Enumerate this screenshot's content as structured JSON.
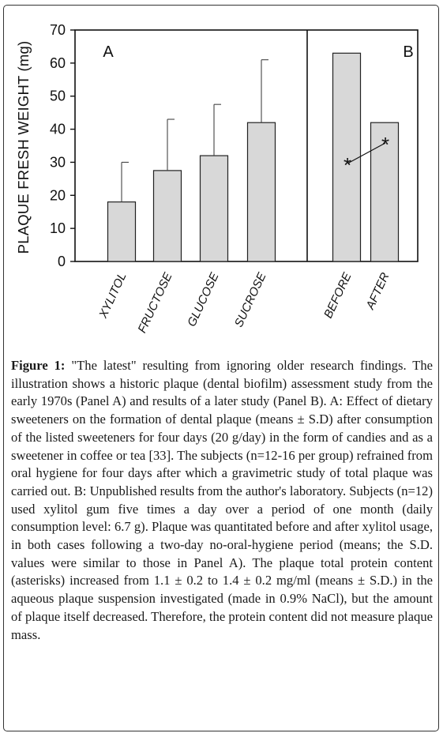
{
  "figure": {
    "caption_label": "Figure 1:",
    "caption_text": " \"The latest\" resulting from ignoring older research findings. The illustration shows a historic plaque (dental biofilm) assessment study from the early 1970s (Panel A) and results of a later study (Panel B). A: Effect of dietary sweeteners on the formation of dental plaque (means ± S.D) after consumption of the listed sweeteners for four days (20 g/day) in the form of candies and as a sweetener in coffee or tea [33]. The subjects (n=12-16 per group) refrained from oral hygiene for four days after which a gravimetric study of total plaque was carried out. B: Unpublished results from the author's laboratory. Subjects (n=12) used xylitol gum five times a day over a period of one month (daily consumption level: 6.7 g). Plaque was quantitated before and after xylitol usage, in both cases following a two-day no-oral-hygiene period (means; the S.D. values were similar to those in Panel A). The plaque total protein content (asterisks) increased from 1.1 ± 0.2 to 1.4 ± 0.2 mg/ml (means ± S.D.) in the aqueous plaque suspension investigated (made in 0.9% NaCl), but the amount of plaque itself decreased. Therefore, the protein content did not measure plaque mass."
  },
  "chart_data": {
    "type": "bar",
    "ylabel": "PLAQUE FRESH WEIGHT (mg)",
    "ylim": [
      0,
      70
    ],
    "yticks": [
      0,
      10,
      20,
      30,
      40,
      50,
      60,
      70
    ],
    "grid": false,
    "bar_color": "#d8d8d8",
    "panels": [
      {
        "label": "A",
        "categories": [
          "XYLITOL",
          "FRUCTOSE",
          "GLUCOSE",
          "SUCROSE"
        ],
        "values": [
          18,
          27.5,
          32,
          42
        ],
        "error_upper": [
          30,
          43,
          47.5,
          61
        ]
      },
      {
        "label": "B",
        "categories": [
          "BEFORE",
          "AFTER"
        ],
        "values": [
          63,
          42
        ],
        "protein_markers": {
          "symbol": "*",
          "values": [
            1.1,
            1.4
          ],
          "unit": "mg/ml"
        }
      }
    ]
  }
}
